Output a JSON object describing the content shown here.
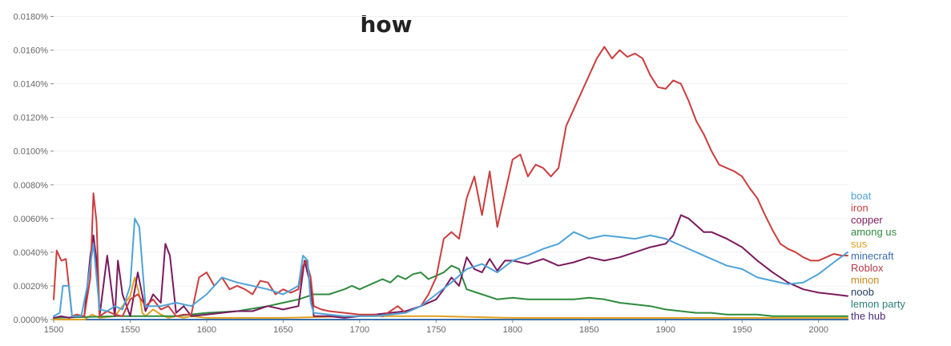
{
  "chart_data": {
    "type": "line",
    "title": "how",
    "xlabel": "",
    "ylabel": "",
    "xlim": [
      1500,
      2019
    ],
    "ylim": [
      0,
      0.0185
    ],
    "x_ticks": [
      1500,
      1550,
      1600,
      1650,
      1700,
      1750,
      1800,
      1850,
      1900,
      1950,
      2000
    ],
    "x_tick_labels": [
      "1500",
      "1550",
      "1600",
      "1650",
      "1700",
      "1750",
      "1800",
      "1850",
      "1900",
      "1950",
      "2000"
    ],
    "y_ticks": [
      0,
      0.002,
      0.004,
      0.006,
      0.008,
      0.01,
      0.012,
      0.014,
      0.016,
      0.018
    ],
    "y_tick_labels": [
      "0.0000%",
      "0.0020%",
      "0.0040%",
      "0.0060%",
      "0.0080%",
      "0.0100%",
      "0.0120%",
      "0.0140%",
      "0.0160%",
      "0.0180%"
    ],
    "grid": true,
    "legend_position": "right",
    "series": [
      {
        "name": "boat",
        "color": "#4ea3d8",
        "x": [
          1500,
          1504,
          1506,
          1510,
          1512,
          1518,
          1522,
          1526,
          1530,
          1535,
          1540,
          1545,
          1550,
          1553,
          1556,
          1560,
          1565,
          1570,
          1580,
          1590,
          1600,
          1610,
          1620,
          1630,
          1640,
          1650,
          1660,
          1663,
          1666,
          1668,
          1670,
          1680,
          1690,
          1700,
          1710,
          1720,
          1730,
          1740,
          1750,
          1760,
          1770,
          1780,
          1790,
          1800,
          1810,
          1820,
          1830,
          1840,
          1850,
          1860,
          1870,
          1880,
          1890,
          1900,
          1910,
          1920,
          1930,
          1940,
          1950,
          1960,
          1970,
          1980,
          1990,
          2000,
          2010,
          2019
        ],
        "y": [
          0.0002,
          0.0004,
          0.002,
          0.002,
          0.0002,
          0.0002,
          0.002,
          0.0045,
          0.0006,
          0.0005,
          0.0008,
          0.0006,
          0.002,
          0.006,
          0.0055,
          0.0008,
          0.0008,
          0.0008,
          0.001,
          0.0008,
          0.0015,
          0.0025,
          0.0022,
          0.002,
          0.0018,
          0.0015,
          0.002,
          0.0038,
          0.0035,
          0.001,
          0.0004,
          0.0003,
          0.0002,
          0.0002,
          0.0002,
          0.0003,
          0.0004,
          0.0008,
          0.0015,
          0.0022,
          0.003,
          0.0033,
          0.0028,
          0.0035,
          0.0038,
          0.0042,
          0.0045,
          0.0052,
          0.0048,
          0.005,
          0.0049,
          0.0048,
          0.005,
          0.0048,
          0.0044,
          0.004,
          0.0036,
          0.0032,
          0.003,
          0.0025,
          0.0023,
          0.0021,
          0.0022,
          0.0027,
          0.0034,
          0.004
        ]
      },
      {
        "name": "iron",
        "color": "#cc3d3d",
        "x": [
          1500,
          1502,
          1505,
          1508,
          1512,
          1515,
          1520,
          1524,
          1526,
          1528,
          1530,
          1535,
          1540,
          1545,
          1550,
          1555,
          1560,
          1565,
          1570,
          1575,
          1580,
          1585,
          1590,
          1595,
          1600,
          1605,
          1610,
          1615,
          1620,
          1625,
          1630,
          1635,
          1640,
          1645,
          1650,
          1655,
          1660,
          1663,
          1665,
          1668,
          1670,
          1675,
          1680,
          1690,
          1700,
          1710,
          1715,
          1720,
          1725,
          1730,
          1740,
          1745,
          1750,
          1755,
          1760,
          1765,
          1770,
          1775,
          1780,
          1785,
          1790,
          1795,
          1800,
          1805,
          1810,
          1815,
          1820,
          1825,
          1830,
          1835,
          1840,
          1845,
          1850,
          1855,
          1860,
          1865,
          1870,
          1875,
          1880,
          1885,
          1890,
          1895,
          1900,
          1905,
          1910,
          1915,
          1920,
          1925,
          1930,
          1935,
          1940,
          1945,
          1950,
          1955,
          1960,
          1965,
          1970,
          1975,
          1980,
          1985,
          1990,
          1995,
          2000,
          2005,
          2010,
          2015,
          2019
        ],
        "y": [
          0.0012,
          0.0041,
          0.0035,
          0.0036,
          0.0002,
          0.0003,
          0.0002,
          0.0025,
          0.0075,
          0.0058,
          0.0002,
          0.0005,
          0.0003,
          0.0002,
          0.0012,
          0.0015,
          0.0008,
          0.0012,
          0.0006,
          0.0008,
          0.0002,
          0.0003,
          0.0003,
          0.0025,
          0.0028,
          0.002,
          0.0025,
          0.0018,
          0.002,
          0.0018,
          0.0015,
          0.0023,
          0.0022,
          0.0015,
          0.0018,
          0.0016,
          0.0018,
          0.0032,
          0.0035,
          0.0025,
          0.0008,
          0.0006,
          0.0005,
          0.0004,
          0.0003,
          0.0003,
          0.0002,
          0.0005,
          0.0008,
          0.0004,
          0.0008,
          0.0015,
          0.0025,
          0.0048,
          0.0052,
          0.0048,
          0.0072,
          0.0085,
          0.0062,
          0.0088,
          0.0055,
          0.0075,
          0.0095,
          0.0098,
          0.0085,
          0.0092,
          0.009,
          0.0085,
          0.009,
          0.0115,
          0.0125,
          0.0135,
          0.0145,
          0.0155,
          0.0162,
          0.0155,
          0.016,
          0.0156,
          0.0158,
          0.0155,
          0.0145,
          0.0138,
          0.0137,
          0.0142,
          0.014,
          0.013,
          0.0118,
          0.011,
          0.01,
          0.0092,
          0.009,
          0.0088,
          0.0085,
          0.0078,
          0.0072,
          0.0062,
          0.0053,
          0.0045,
          0.0042,
          0.004,
          0.0037,
          0.0035,
          0.0035,
          0.0037,
          0.0039,
          0.0038,
          0.0038
        ]
      },
      {
        "name": "copper",
        "color": "#7a1a5e",
        "x": [
          1500,
          1505,
          1510,
          1515,
          1520,
          1524,
          1526,
          1528,
          1530,
          1535,
          1540,
          1542,
          1545,
          1550,
          1555,
          1560,
          1565,
          1570,
          1573,
          1576,
          1580,
          1585,
          1590,
          1600,
          1610,
          1620,
          1630,
          1640,
          1650,
          1660,
          1664,
          1668,
          1670,
          1680,
          1690,
          1700,
          1710,
          1720,
          1730,
          1740,
          1750,
          1755,
          1760,
          1765,
          1770,
          1775,
          1780,
          1785,
          1790,
          1795,
          1800,
          1810,
          1820,
          1830,
          1840,
          1850,
          1860,
          1870,
          1880,
          1890,
          1900,
          1905,
          1910,
          1915,
          1920,
          1925,
          1930,
          1940,
          1950,
          1960,
          1970,
          1980,
          1990,
          2000,
          2010,
          2019
        ],
        "y": [
          0.0001,
          0.0002,
          0.0001,
          0.0002,
          0.0002,
          0.0038,
          0.005,
          0.0035,
          0.0002,
          0.0038,
          0.0002,
          0.0035,
          0.0015,
          0.0002,
          0.0028,
          0.0005,
          0.0015,
          0.001,
          0.0045,
          0.0038,
          0.0004,
          0.0008,
          0.0002,
          0.0003,
          0.0004,
          0.0005,
          0.0005,
          0.0008,
          0.0006,
          0.0008,
          0.0035,
          0.002,
          0.0002,
          0.0002,
          0.0001,
          0.0002,
          0.0003,
          0.0004,
          0.0005,
          0.0008,
          0.0012,
          0.0018,
          0.0025,
          0.002,
          0.0037,
          0.003,
          0.0028,
          0.0036,
          0.0029,
          0.0035,
          0.0035,
          0.0033,
          0.0036,
          0.0032,
          0.0034,
          0.0037,
          0.0035,
          0.0037,
          0.004,
          0.0043,
          0.0045,
          0.005,
          0.0062,
          0.006,
          0.0056,
          0.0052,
          0.0052,
          0.0048,
          0.0043,
          0.0035,
          0.0028,
          0.0022,
          0.0018,
          0.0016,
          0.0015,
          0.0014
        ]
      },
      {
        "name": "among us",
        "color": "#2e8b3d",
        "x": [
          1500,
          1540,
          1580,
          1600,
          1620,
          1640,
          1650,
          1660,
          1670,
          1680,
          1690,
          1695,
          1700,
          1705,
          1710,
          1715,
          1720,
          1725,
          1730,
          1735,
          1740,
          1745,
          1750,
          1755,
          1760,
          1765,
          1770,
          1780,
          1790,
          1800,
          1810,
          1820,
          1830,
          1840,
          1850,
          1860,
          1870,
          1880,
          1890,
          1900,
          1910,
          1920,
          1930,
          1940,
          1950,
          1960,
          1970,
          1980,
          1990,
          2000,
          2010,
          2019
        ],
        "y": [
          0.0001,
          0.0002,
          0.0002,
          0.0004,
          0.0005,
          0.0008,
          0.001,
          0.0012,
          0.0015,
          0.0015,
          0.0018,
          0.002,
          0.0018,
          0.002,
          0.0022,
          0.0024,
          0.0022,
          0.0026,
          0.0024,
          0.0027,
          0.0028,
          0.0024,
          0.0026,
          0.0028,
          0.0032,
          0.003,
          0.0018,
          0.0015,
          0.0012,
          0.0013,
          0.0012,
          0.0012,
          0.0012,
          0.0012,
          0.0013,
          0.0012,
          0.001,
          0.0009,
          0.0008,
          0.0006,
          0.0005,
          0.0004,
          0.0004,
          0.0003,
          0.0003,
          0.0003,
          0.0002,
          0.0002,
          0.0002,
          0.0002,
          0.0002,
          0.0002
        ]
      },
      {
        "name": "sus",
        "color": "#e0a020",
        "x": [
          1500,
          1520,
          1525,
          1530,
          1540,
          1545,
          1550,
          1553,
          1556,
          1558,
          1560,
          1565,
          1570,
          1575,
          1580,
          1585,
          1590,
          1600,
          1610,
          1650,
          1700,
          1750,
          1800,
          1850,
          1900,
          1950,
          2000,
          2019
        ],
        "y": [
          0.0,
          0.0,
          0.0003,
          0.0001,
          0.0002,
          0.0008,
          0.0014,
          0.0025,
          0.0015,
          0.0004,
          0.0002,
          0.0006,
          0.0003,
          0.0001,
          0.0002,
          0.0001,
          0.0002,
          0.0001,
          0.0001,
          0.0001,
          0.0002,
          0.0002,
          0.0001,
          0.0001,
          0.0001,
          0.0001,
          0.0001,
          0.0001
        ]
      },
      {
        "name": "minecraft",
        "color": "#3a6fb0",
        "x": [
          1500,
          2019
        ],
        "y": [
          0.0,
          0.0
        ]
      },
      {
        "name": "Roblox",
        "color": "#b03a4a",
        "x": [
          1500,
          2019
        ],
        "y": [
          0.0,
          0.0
        ]
      },
      {
        "name": "minon",
        "color": "#c88a20",
        "x": [
          1500,
          2019
        ],
        "y": [
          0.0,
          0.0
        ]
      },
      {
        "name": "noob",
        "color": "#1f3a5e",
        "x": [
          1500,
          2019
        ],
        "y": [
          0.0,
          0.0
        ]
      },
      {
        "name": "lemon party",
        "color": "#2e7f7a",
        "x": [
          1500,
          2019
        ],
        "y": [
          0.0,
          0.0
        ]
      },
      {
        "name": "the hub",
        "color": "#4a2a7a",
        "x": [
          1500,
          2019
        ],
        "y": [
          0.0,
          0.0
        ]
      }
    ]
  }
}
